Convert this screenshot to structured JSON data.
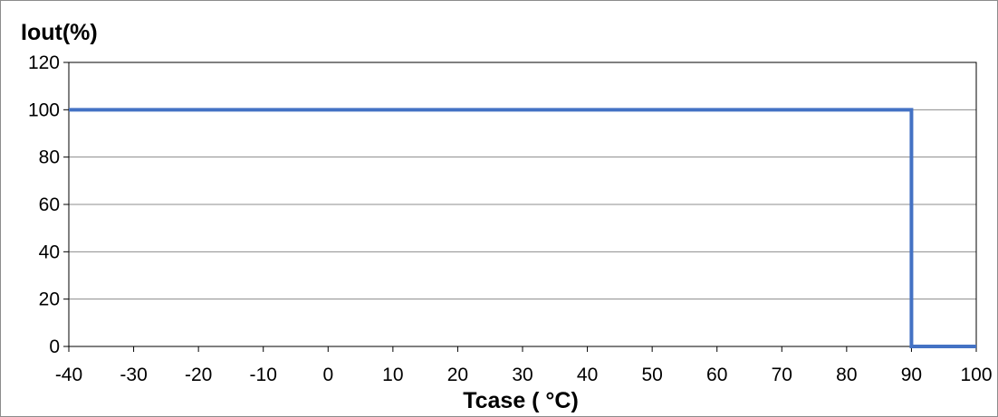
{
  "chart_data": {
    "type": "line",
    "xlabel": "Tcase ( °C)",
    "ylabel": "Iout(%)",
    "xlim": [
      -40,
      100
    ],
    "ylim": [
      0,
      120
    ],
    "x_ticks": [
      -40,
      -30,
      -20,
      -10,
      0,
      10,
      20,
      30,
      40,
      50,
      60,
      70,
      80,
      90,
      100
    ],
    "y_ticks": [
      0,
      20,
      40,
      60,
      80,
      100,
      120
    ],
    "grid": true,
    "series": [
      {
        "x": [
          -40,
          90,
          90,
          100
        ],
        "y": [
          100,
          100,
          0,
          0
        ],
        "color": "#4472c4"
      }
    ]
  }
}
